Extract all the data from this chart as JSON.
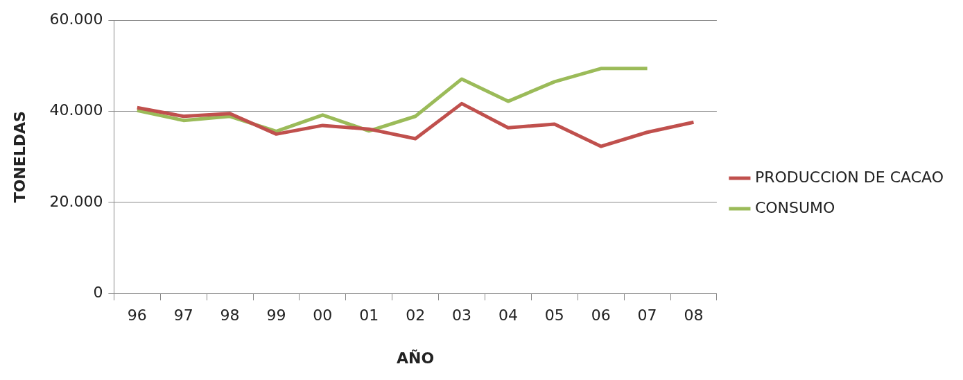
{
  "chart_data": {
    "type": "line",
    "xlabel": "AÑO",
    "ylabel": "TONELDAS",
    "categories": [
      "96",
      "97",
      "98",
      "99",
      "00",
      "01",
      "02",
      "03",
      "04",
      "05",
      "06",
      "07",
      "08"
    ],
    "series": [
      {
        "name": "PRODUCCION DE CACAO",
        "color": "#c0504d",
        "values": [
          40800,
          38900,
          39500,
          35000,
          36900,
          36100,
          34000,
          41700,
          36400,
          37200,
          32300,
          35400,
          37600
        ]
      },
      {
        "name": "CONSUMO",
        "color": "#9bbb59",
        "values": [
          40200,
          38000,
          38900,
          35600,
          39200,
          35700,
          38900,
          47100,
          42200,
          46500,
          49400,
          49400,
          null
        ]
      }
    ],
    "ylim": [
      0,
      60000
    ],
    "yticks": [
      0,
      {
        "value": 20000,
        "label": "20.000"
      },
      {
        "value": 40000,
        "label": "40.000"
      },
      {
        "value": 60000,
        "label": "60.000"
      }
    ],
    "grid": "y",
    "legend": "right",
    "marker": "none",
    "line_style": "solid"
  }
}
